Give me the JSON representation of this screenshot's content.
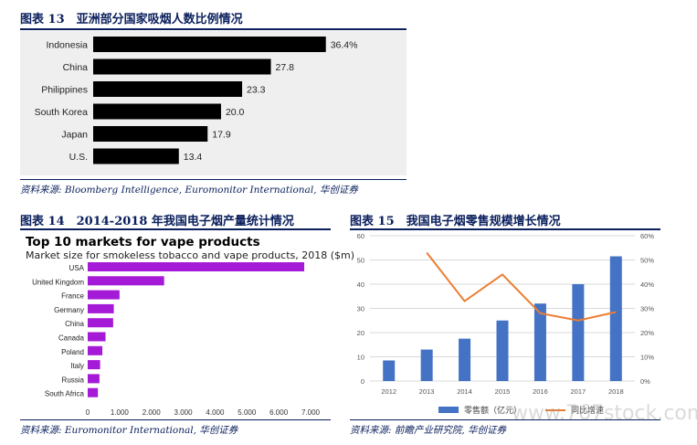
{
  "figure13": {
    "title": "图表 13　亚洲部分国家吸烟人数比例情况",
    "source": "资料来源: Bloomberg Intelligence, Euromonitor International, 华创证券"
  },
  "figure14": {
    "title": "图表 14　2014-2018 年我国电子烟产量统计情况",
    "source": "资料来源: Euromonitor International, 华创证券"
  },
  "figure15": {
    "title": "图表 15　我国电子烟零售规模增长情况",
    "source": "资料来源: 前瞻产业研究院, 华创证券"
  },
  "watermark": "www.767stock.com",
  "chart_data": [
    {
      "type": "bar",
      "orientation": "horizontal",
      "categories": [
        "Indonesia",
        "China",
        "Philippines",
        "South Korea",
        "Japan",
        "U.S."
      ],
      "values": [
        36.4,
        27.8,
        23.3,
        20.0,
        17.9,
        13.4
      ],
      "value_labels": [
        "36.4%",
        "27.8",
        "23.3",
        "20.0",
        "17.9",
        "13.4"
      ],
      "xlim": [
        0,
        40
      ],
      "colors": {
        "bar": "#000000",
        "background": "#efefef"
      }
    },
    {
      "type": "bar",
      "orientation": "horizontal",
      "title": "Top 10 markets for vape products",
      "subtitle": "Market size for smokeless tobacco and vape products, 2018 ($m)",
      "categories": [
        "USA",
        "United Kingdom",
        "France",
        "Germany",
        "China",
        "Canada",
        "Poland",
        "Italy",
        "Russia",
        "South Africa"
      ],
      "values": [
        6800,
        2400,
        1000,
        820,
        800,
        560,
        460,
        390,
        370,
        320
      ],
      "xlim": [
        0,
        7000
      ],
      "xticks": [
        "0",
        "1,000",
        "2,000",
        "3,000",
        "4,000",
        "5,000",
        "6,000",
        "7,000"
      ],
      "colors": {
        "bar": "#a51ad6"
      }
    },
    {
      "type": "bar",
      "categories": [
        "2012",
        "2013",
        "2014",
        "2015",
        "2016",
        "2017",
        "2018"
      ],
      "series": [
        {
          "name": "零售额（亿元）",
          "type": "bar",
          "axis": "left",
          "values": [
            8.5,
            13,
            17.5,
            25,
            32,
            40,
            51.5
          ]
        },
        {
          "name": "同比增速",
          "type": "line",
          "axis": "right",
          "values": [
            null,
            53,
            33,
            44,
            28,
            25,
            28.5
          ]
        }
      ],
      "ylim": [
        0,
        60
      ],
      "yticks": [
        "0",
        "10",
        "20",
        "30",
        "40",
        "50",
        "60"
      ],
      "y2lim": [
        0,
        60
      ],
      "y2ticks": [
        "0%",
        "10%",
        "20%",
        "30%",
        "40%",
        "50%",
        "60%"
      ],
      "grid": true,
      "legend": "bottom",
      "colors": {
        "bar": "#4472c4",
        "line": "#ed7d31"
      }
    }
  ]
}
